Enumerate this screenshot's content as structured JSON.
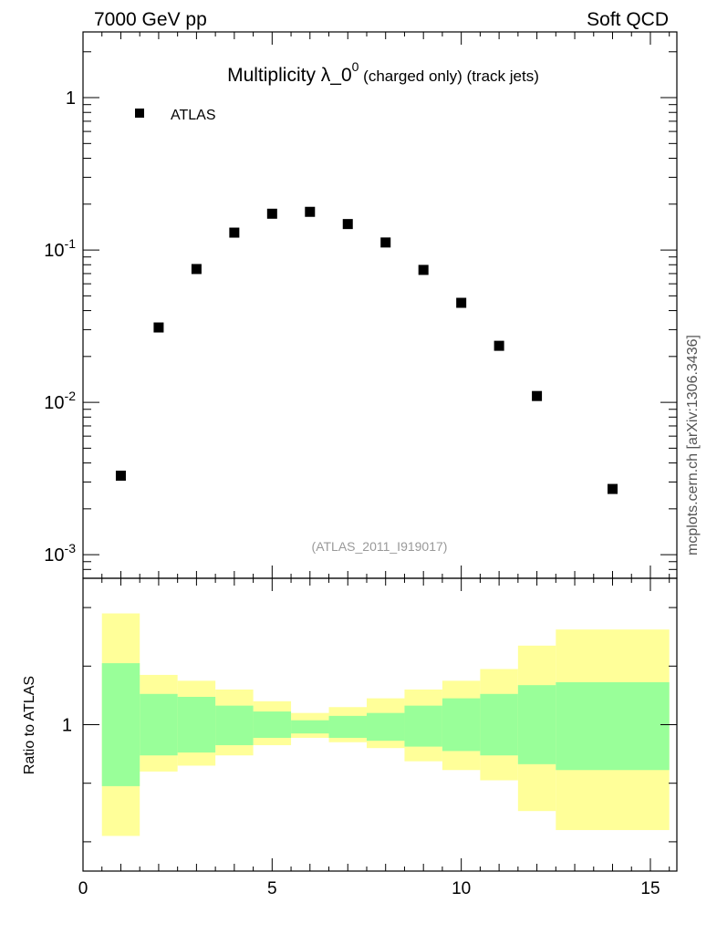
{
  "header": {
    "left": "7000 GeV pp",
    "right": "Soft QCD"
  },
  "side_label": "mcplots.cern.ch [arXiv:1306.3436]",
  "chart_data": [
    {
      "type": "scatter",
      "title_main": "Multiplicity λ_0",
      "title_sup": "0",
      "title_suffix": " (charged only) (track jets)",
      "annotation": "(ATLAS_2011_I919017)",
      "legend": [
        {
          "name": "ATLAS",
          "marker": "square",
          "color": "#000000",
          "position": "top-left"
        }
      ],
      "yscale": "log",
      "ylim": [
        0.0007,
        2.7
      ],
      "xlim": [
        0,
        15.7
      ],
      "ytick_labels": [
        {
          "base": "10",
          "exp": "-3",
          "value": 0.001
        },
        {
          "base": "10",
          "exp": "-2",
          "value": 0.01
        },
        {
          "base": "10",
          "exp": "-1",
          "value": 0.1
        },
        {
          "base": "1",
          "exp": "",
          "value": 1
        }
      ],
      "series": [
        {
          "name": "ATLAS",
          "points": [
            {
              "x": 1,
              "y": 0.0033
            },
            {
              "x": 2,
              "y": 0.031
            },
            {
              "x": 3,
              "y": 0.075
            },
            {
              "x": 4,
              "y": 0.13
            },
            {
              "x": 5,
              "y": 0.173
            },
            {
              "x": 6,
              "y": 0.178
            },
            {
              "x": 7,
              "y": 0.148
            },
            {
              "x": 8,
              "y": 0.112
            },
            {
              "x": 9,
              "y": 0.074
            },
            {
              "x": 10,
              "y": 0.045
            },
            {
              "x": 11,
              "y": 0.0235
            },
            {
              "x": 12,
              "y": 0.011
            },
            {
              "x": 14,
              "y": 0.0027
            }
          ]
        }
      ]
    },
    {
      "type": "area",
      "ylabel": "Ratio to ATLAS",
      "xlim": [
        0,
        15.7
      ],
      "ylim": [
        0.5,
        1.5
      ],
      "ytick_labels": [
        {
          "label": "1",
          "value": 1
        }
      ],
      "xtick_labels": [
        {
          "label": "0",
          "value": 0
        },
        {
          "label": "5",
          "value": 5
        },
        {
          "label": "10",
          "value": 10
        },
        {
          "label": "15",
          "value": 15
        }
      ],
      "colors": {
        "inner_band": "#99ff99",
        "outer_band": "#ffff99"
      },
      "bins": [
        {
          "x0": 0.5,
          "x1": 1.5,
          "inner": [
            0.79,
            1.21
          ],
          "outer": [
            0.62,
            1.38
          ]
        },
        {
          "x0": 1.5,
          "x1": 2.5,
          "inner": [
            0.895,
            1.105
          ],
          "outer": [
            0.84,
            1.17
          ]
        },
        {
          "x0": 2.5,
          "x1": 3.5,
          "inner": [
            0.905,
            1.095
          ],
          "outer": [
            0.86,
            1.15
          ]
        },
        {
          "x0": 3.5,
          "x1": 4.5,
          "inner": [
            0.93,
            1.065
          ],
          "outer": [
            0.895,
            1.12
          ]
        },
        {
          "x0": 4.5,
          "x1": 5.5,
          "inner": [
            0.955,
            1.045
          ],
          "outer": [
            0.93,
            1.08
          ]
        },
        {
          "x0": 5.5,
          "x1": 6.5,
          "inner": [
            0.97,
            1.015
          ],
          "outer": [
            0.955,
            1.04
          ]
        },
        {
          "x0": 6.5,
          "x1": 7.5,
          "inner": [
            0.955,
            1.03
          ],
          "outer": [
            0.94,
            1.06
          ]
        },
        {
          "x0": 7.5,
          "x1": 8.5,
          "inner": [
            0.945,
            1.04
          ],
          "outer": [
            0.92,
            1.09
          ]
        },
        {
          "x0": 8.5,
          "x1": 9.5,
          "inner": [
            0.925,
            1.065
          ],
          "outer": [
            0.875,
            1.12
          ]
        },
        {
          "x0": 9.5,
          "x1": 10.5,
          "inner": [
            0.91,
            1.09
          ],
          "outer": [
            0.845,
            1.15
          ]
        },
        {
          "x0": 10.5,
          "x1": 11.5,
          "inner": [
            0.895,
            1.105
          ],
          "outer": [
            0.81,
            1.19
          ]
        },
        {
          "x0": 11.5,
          "x1": 12.5,
          "inner": [
            0.865,
            1.135
          ],
          "outer": [
            0.705,
            1.27
          ]
        },
        {
          "x0": 12.5,
          "x1": 15.5,
          "inner": [
            0.845,
            1.145
          ],
          "outer": [
            0.64,
            1.325
          ]
        }
      ]
    }
  ]
}
